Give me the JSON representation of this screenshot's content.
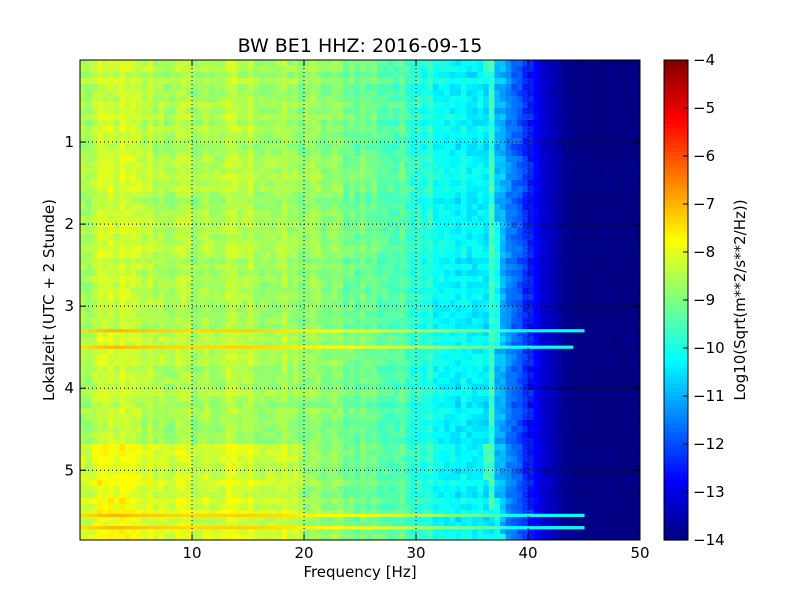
{
  "chart_data": {
    "type": "heatmap",
    "title": "BW BE1 HHZ: 2016-09-15",
    "xlabel": "Frequency [Hz]",
    "ylabel": "Lokalzeit (UTC + 2 Stunde)",
    "xlim": [
      0,
      50
    ],
    "ylim": [
      5.85,
      0.0
    ],
    "x_ticks": [
      10,
      20,
      30,
      40,
      50
    ],
    "x_tick_labels": [
      "10",
      "20",
      "30",
      "40",
      "50"
    ],
    "y_ticks": [
      1,
      2,
      3,
      4,
      5
    ],
    "y_tick_labels": [
      "1",
      "2",
      "3",
      "4",
      "5"
    ],
    "grid": true,
    "colormap": "jet",
    "colorbar": {
      "label": "Log10(Sqrt(m**2/s**2/Hz))",
      "range": [
        -14,
        -4
      ],
      "ticks": [
        -4,
        -5,
        -6,
        -7,
        -8,
        -9,
        -10,
        -11,
        -12,
        -13,
        -14
      ],
      "tick_labels": [
        "−4",
        "−5",
        "−6",
        "−7",
        "−8",
        "−9",
        "−10",
        "−11",
        "−12",
        "−13",
        "−14"
      ]
    },
    "frequency_profile": {
      "frequency_hz": [
        0,
        3,
        5,
        10,
        15,
        20,
        25,
        28,
        30,
        32,
        34,
        36,
        37.5,
        38.5,
        40,
        41,
        42,
        43,
        44,
        45,
        50
      ],
      "level": [
        -8.7,
        -8.2,
        -8.4,
        -8.6,
        -8.5,
        -8.8,
        -9.1,
        -9.4,
        -9.7,
        -10.0,
        -10.3,
        -10.5,
        -10.8,
        -11.6,
        -12.3,
        -13.0,
        -13.4,
        -13.7,
        -13.95,
        -14.0,
        -14.0
      ]
    },
    "spectral_line": {
      "time_h": [
        0.0,
        1.0,
        2.0,
        3.0,
        4.0,
        5.0,
        5.85
      ],
      "frequency_hz": [
        36.5,
        36.9,
        36.9,
        37.0,
        36.8,
        36.5,
        37.5
      ]
    },
    "transient_bands": [
      {
        "time_h": 3.3,
        "max_frequency_hz": 45
      },
      {
        "time_h": 3.5,
        "max_frequency_hz": 44
      },
      {
        "time_h": 5.55,
        "max_frequency_hz": 45
      },
      {
        "time_h": 5.7,
        "max_frequency_hz": 45
      }
    ]
  }
}
